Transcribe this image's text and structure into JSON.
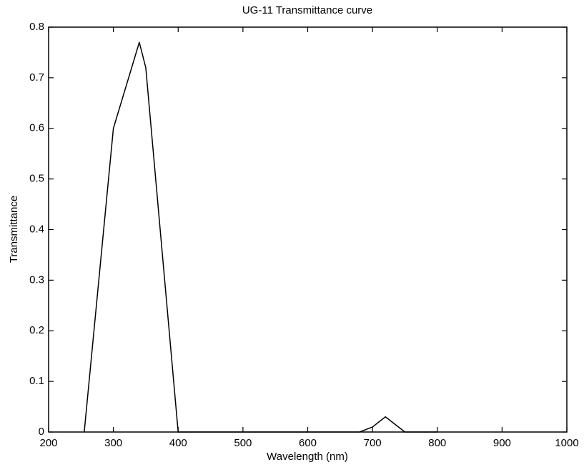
{
  "chart_data": {
    "type": "line",
    "title": "UG-11 Transmittance curve",
    "x_label": "Wavelength (nm)",
    "y_label": "Transmittance",
    "x": [
      255,
      300,
      340,
      350,
      400,
      500,
      600,
      680,
      700,
      720,
      750,
      800
    ],
    "series": [
      {
        "name": "UG-11",
        "color": "#000000",
        "values": [
          0,
          0.6,
          0.77,
          0.72,
          0,
          0,
          0,
          0,
          0.01,
          0.03,
          0,
          0
        ]
      }
    ],
    "xlim": [
      200,
      1000
    ],
    "xticks": [
      200,
      300,
      400,
      500,
      600,
      700,
      800,
      900,
      1000
    ],
    "ylim": [
      0,
      0.8
    ],
    "yticks": [
      0,
      0.1,
      0.2,
      0.3,
      0.4,
      0.5,
      0.6,
      0.7,
      0.8
    ],
    "grid": false
  }
}
